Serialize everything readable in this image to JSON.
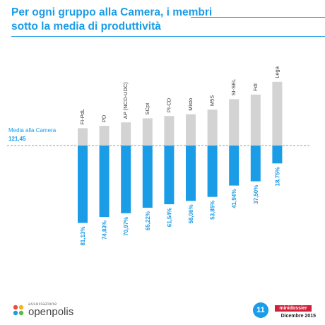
{
  "title": "Per ogni gruppo alla Camera, i membri sotto la media di produttività",
  "chart_data": {
    "type": "bar",
    "reference": {
      "label": "Media alla Camera",
      "value": "121,45"
    },
    "categories": [
      "FI-PdL",
      "PD",
      "AP (NCD-UDC)",
      "SCpI",
      "PI-CD",
      "Misto",
      "M5S",
      "SI-SEL",
      "FdI",
      "Lega"
    ],
    "above_share": [
      0.3,
      0.34,
      0.4,
      0.47,
      0.51,
      0.54,
      0.62,
      0.8,
      0.88,
      1.1
    ],
    "below_percent": [
      81.13,
      74.83,
      70.97,
      65.22,
      61.54,
      58.06,
      53.85,
      41.94,
      37.5,
      18.75
    ],
    "below_labels": [
      "81,13%",
      "74,83%",
      "70,97%",
      "65,22%",
      "61,54%",
      "58,06%",
      "53,85%",
      "41,94%",
      "37,50%",
      "18,75%"
    ],
    "colors": {
      "above": "#d3d3d3",
      "below": "#1a9ce6",
      "reference_line": "#999999"
    },
    "grid": false
  },
  "footer": {
    "logo_small": "associazione",
    "logo_big": "openpolis",
    "page_number": "11",
    "badge": "minidossier",
    "date": "Dicembre 2015"
  }
}
